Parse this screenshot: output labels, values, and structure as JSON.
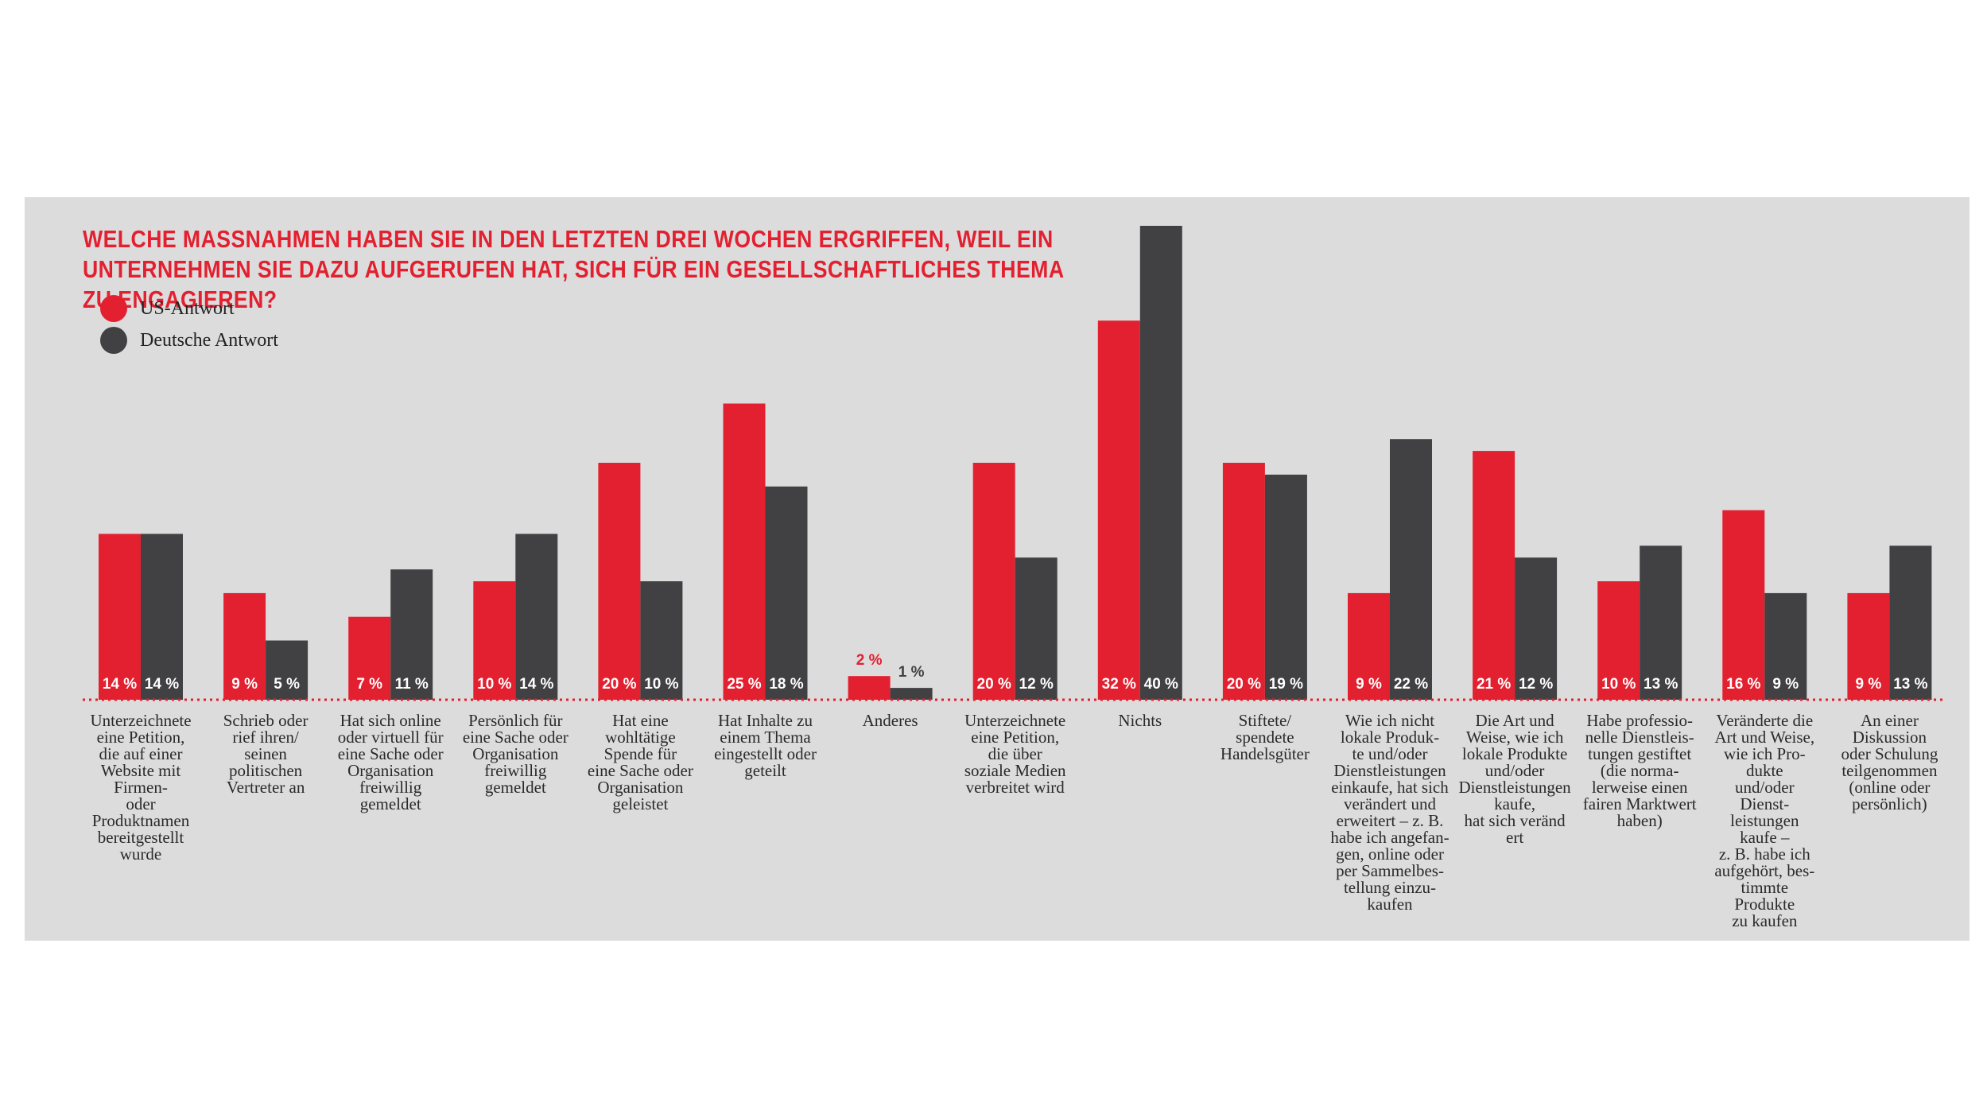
{
  "title": "WELCHE MASSNAHMEN HABEN SIE IN DEN LETZTEN DREI WOCHEN ERGRIFFEN, WEIL EIN UNTERNEHMEN SIE DAZU AUFGERUFEN HAT, SICH FÜR EIN GESELLSCHAFTLICHES THEMA ZU ENGAGIEREN?",
  "colors": {
    "us": "#e3202f",
    "de": "#414143",
    "panel": "#dcdcdd"
  },
  "chart_data": {
    "type": "bar",
    "title": "WELCHE MASSNAHMEN HABEN SIE IN DEN LETZTEN DREI WOCHEN ERGRIFFEN, WEIL EIN UNTERNEHMEN SIE DAZU AUFGERUFEN HAT, SICH FÜR EIN GESELLSCHAFTLICHES THEMA ZU ENGAGIEREN?",
    "legend_position": "top-left",
    "grid": false,
    "ylim": [
      0,
      40
    ],
    "categories": [
      "Unterzeichnete\neine Petition,\ndie auf  einer\nWebsite mit\nFirmen-\noder\nProduktnamen\nbereitgestellt\nwurde",
      "Schrieb oder\nrief ihren/\nseinen\npolitischen\nVertreter an",
      "Hat sich online\noder virtuell für\neine Sache oder\nOrganisation\nfreiwillig\ngemeldet",
      "Persönlich für\neine Sache oder\nOrganisation\nfreiwillig\ngemeldet",
      "Hat eine\nwohltätige\nSpende für\neine Sache oder\nOrganisation\ngeleistet",
      "Hat Inhalte zu\neinem Thema\neingestellt oder\ngeteilt",
      "Anderes",
      "Unterzeichnete\neine Petition,\ndie über\nsoziale Medien\nverbreitet wird",
      "Nichts",
      "Stiftete/\nspendete\nHandelsgüter",
      "Wie ich nicht\nlokale Produk-\nte und/oder\nDienstleistungen\neinkaufe, hat sich\nverändert und\nerweitert – z. B.\nhabe ich angefan-\ngen, online oder\nper Sammelbes-\ntellung einzu-\nkaufen",
      "Die Art und\nWeise, wie ich\nlokale Produkte\nund/oder\nDienstleistungen\nkaufe,\nhat sich veränd\nert",
      "Habe professio-\nnelle Dienstleis-\ntungen gestiftet\n(die norma-\nlerweise einen\nfairen Marktwert\nhaben)",
      "Veränderte die\nArt und Weise,\nwie ich Pro-\ndukte\nund/oder\nDienst-\nleistungen\nkaufe –\nz. B. habe ich\naufgehört, bes-\ntimmte\nProdukte\nzu kaufen",
      "An einer\nDiskussion\noder Schulung\nteilgenommen\n(online oder\npersönlich)"
    ],
    "series": [
      {
        "name": "US-Antwort",
        "values": [
          14,
          9,
          7,
          10,
          20,
          25,
          2,
          20,
          32,
          20,
          9,
          21,
          10,
          16,
          9
        ]
      },
      {
        "name": "Deutsche Antwort",
        "values": [
          14,
          5,
          11,
          14,
          10,
          18,
          1,
          12,
          40,
          19,
          22,
          12,
          13,
          9,
          13
        ]
      }
    ],
    "data_labels": {
      "us": [
        "14 %",
        "9 %",
        "7 %",
        "10 %",
        "20 %",
        "25 %",
        "2 %",
        "20 %",
        "32 %",
        "20 %",
        "9 %",
        "21 %",
        "10 %",
        "16 %",
        "9 %"
      ],
      "de": [
        "14 %",
        "5 %",
        "11 %",
        "14 %",
        "10 %",
        "18 %",
        "1 %",
        "12 %",
        "40 %",
        "19 %",
        "22 %",
        "12 %",
        "13 %",
        "9 %",
        "13 %"
      ]
    }
  }
}
